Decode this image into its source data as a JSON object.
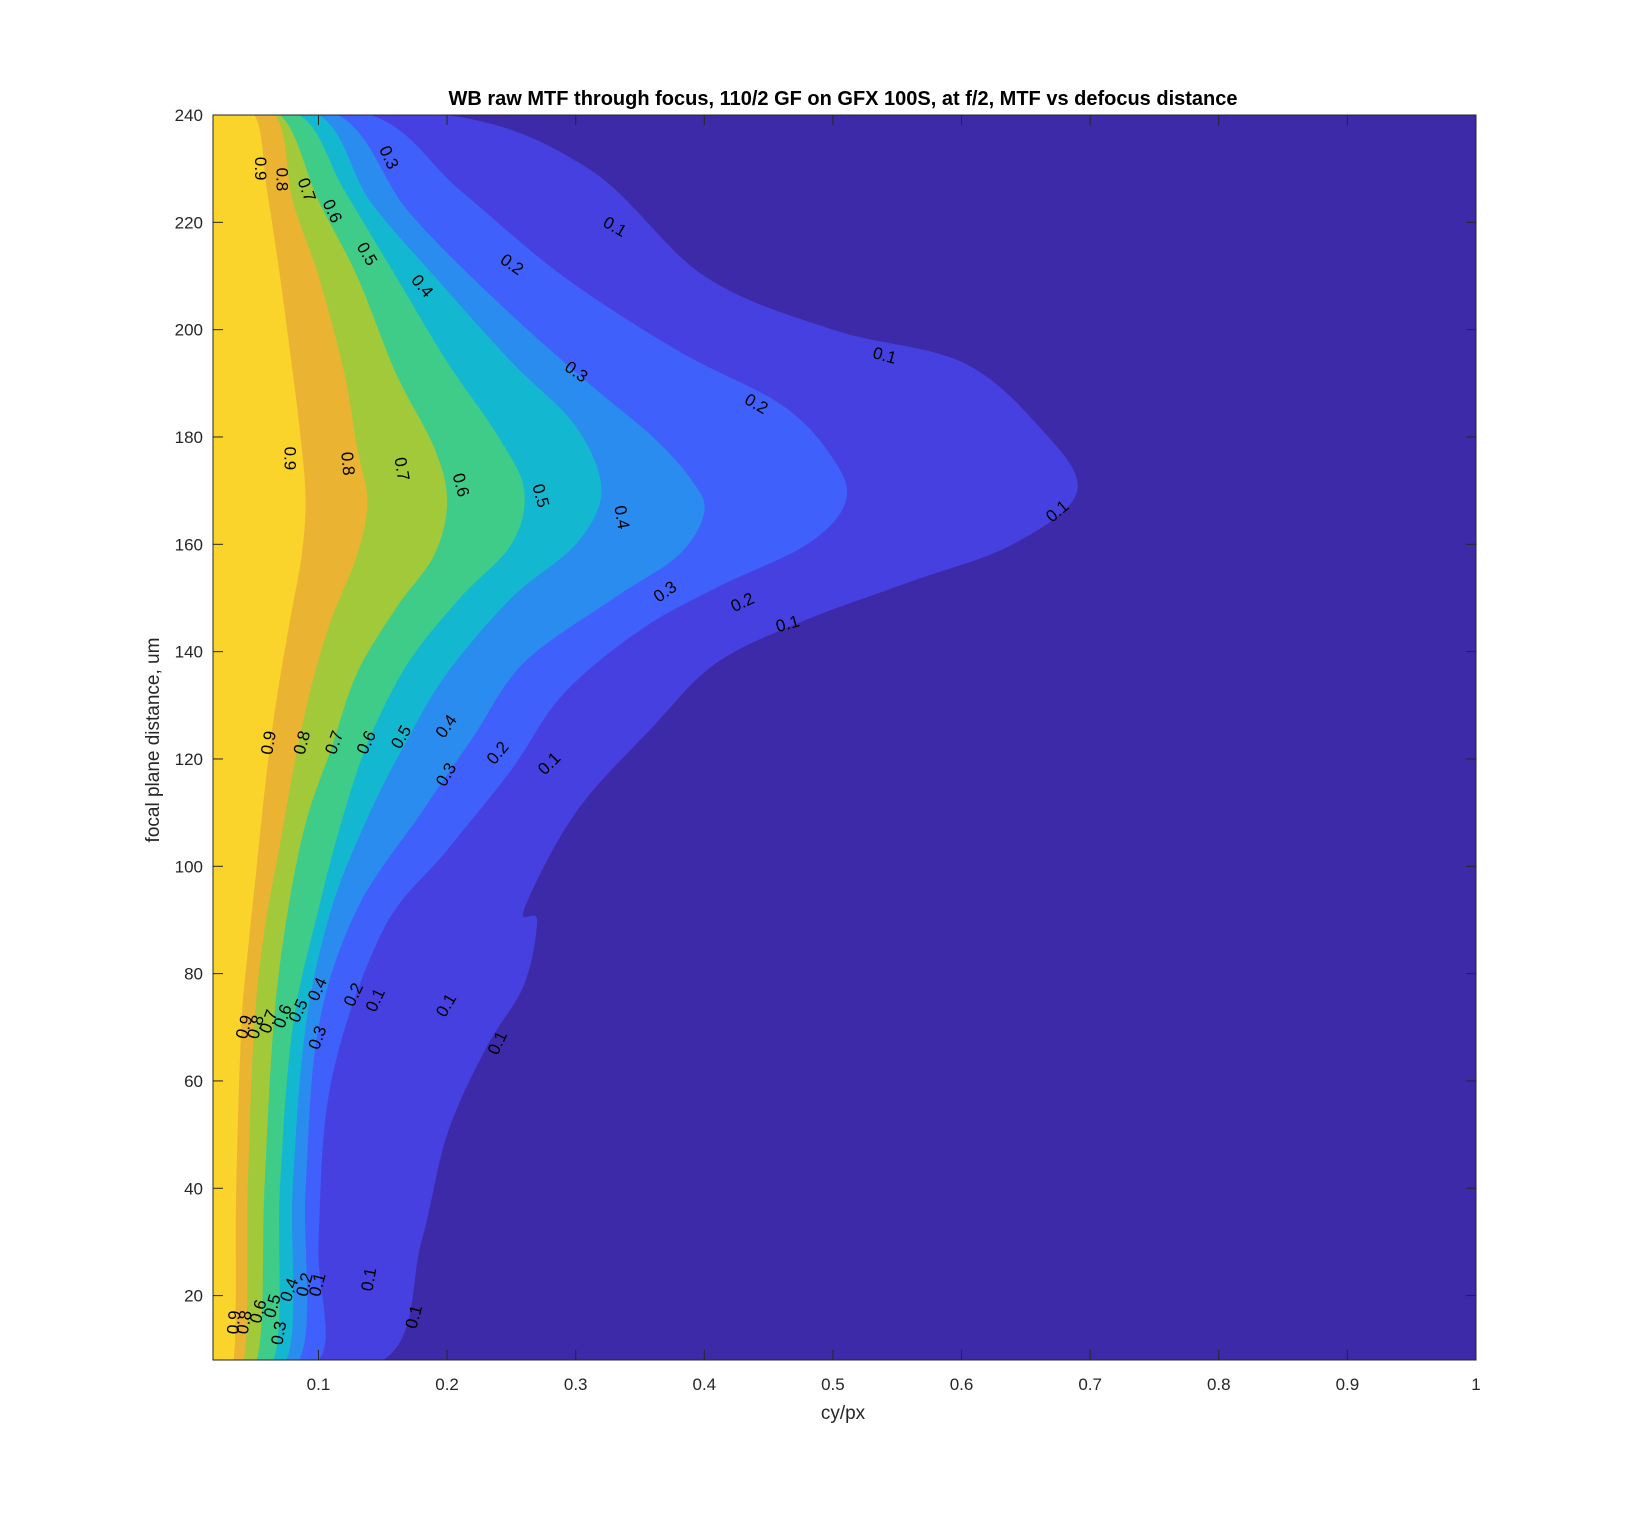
{
  "chart_data": {
    "type": "contour",
    "title": "WB raw MTF through focus, 110/2 GF on GFX 100S, at f/2, MTF vs defocus distance",
    "xlabel": "cy/px",
    "ylabel": "focal plane distance, um",
    "xlim": [
      0.018,
      1.0
    ],
    "ylim": [
      8,
      240
    ],
    "xticks": [
      0.1,
      0.2,
      0.3,
      0.4,
      0.5,
      0.6,
      0.7,
      0.8,
      0.9,
      1
    ],
    "xtick_labels": [
      "0.1",
      "0.2",
      "0.3",
      "0.4",
      "0.5",
      "0.6",
      "0.7",
      "0.8",
      "0.9",
      "1"
    ],
    "yticks": [
      20,
      40,
      60,
      80,
      100,
      120,
      140,
      160,
      180,
      200,
      220,
      240
    ],
    "ytick_labels": [
      "20",
      "40",
      "60",
      "80",
      "100",
      "120",
      "140",
      "160",
      "180",
      "200",
      "220",
      "240"
    ],
    "grid": false,
    "background_color": "#3c2aa8",
    "levels": [
      {
        "level": 0.1,
        "color": "#4740e0",
        "boundary": [
          [
            0.018,
            240
          ],
          [
            0.2,
            240
          ],
          [
            0.31,
            230
          ],
          [
            0.4,
            210
          ],
          [
            0.5,
            200
          ],
          [
            0.6,
            194
          ],
          [
            0.66,
            182
          ],
          [
            0.69,
            170
          ],
          [
            0.64,
            160
          ],
          [
            0.56,
            153
          ],
          [
            0.48,
            146
          ],
          [
            0.41,
            138
          ],
          [
            0.36,
            126
          ],
          [
            0.3,
            110
          ],
          [
            0.26,
            92
          ],
          [
            0.27,
            90
          ],
          [
            0.26,
            78
          ],
          [
            0.23,
            66
          ],
          [
            0.2,
            50
          ],
          [
            0.18,
            30
          ],
          [
            0.15,
            8
          ],
          [
            0.018,
            8
          ]
        ]
      },
      {
        "level": 0.2,
        "color": "#3f60fb",
        "boundary": [
          [
            0.018,
            240
          ],
          [
            0.14,
            240
          ],
          [
            0.21,
            226
          ],
          [
            0.29,
            210
          ],
          [
            0.38,
            196
          ],
          [
            0.46,
            186
          ],
          [
            0.5,
            176
          ],
          [
            0.51,
            168
          ],
          [
            0.48,
            160
          ],
          [
            0.41,
            152
          ],
          [
            0.35,
            144
          ],
          [
            0.29,
            132
          ],
          [
            0.25,
            118
          ],
          [
            0.2,
            103
          ],
          [
            0.15,
            88
          ],
          [
            0.11,
            60
          ],
          [
            0.1,
            30
          ],
          [
            0.1,
            8
          ],
          [
            0.018,
            8
          ]
        ]
      },
      {
        "level": 0.3,
        "color": "#2a8cee",
        "boundary": [
          [
            0.018,
            240
          ],
          [
            0.115,
            240
          ],
          [
            0.17,
            222
          ],
          [
            0.24,
            205
          ],
          [
            0.31,
            190
          ],
          [
            0.36,
            180
          ],
          [
            0.39,
            172
          ],
          [
            0.4,
            166
          ],
          [
            0.38,
            158
          ],
          [
            0.33,
            150
          ],
          [
            0.26,
            138
          ],
          [
            0.22,
            124
          ],
          [
            0.18,
            110
          ],
          [
            0.13,
            92
          ],
          [
            0.1,
            70
          ],
          [
            0.09,
            40
          ],
          [
            0.085,
            8
          ],
          [
            0.018,
            8
          ]
        ]
      },
      {
        "level": 0.4,
        "color": "#14b7d0",
        "boundary": [
          [
            0.018,
            240
          ],
          [
            0.1,
            240
          ],
          [
            0.14,
            224
          ],
          [
            0.19,
            210
          ],
          [
            0.25,
            194
          ],
          [
            0.3,
            182
          ],
          [
            0.32,
            170
          ],
          [
            0.3,
            160
          ],
          [
            0.25,
            150
          ],
          [
            0.2,
            136
          ],
          [
            0.17,
            124
          ],
          [
            0.14,
            110
          ],
          [
            0.11,
            92
          ],
          [
            0.09,
            70
          ],
          [
            0.08,
            40
          ],
          [
            0.075,
            8
          ],
          [
            0.018,
            8
          ]
        ]
      },
      {
        "level": 0.5,
        "color": "#3fcc88",
        "boundary": [
          [
            0.018,
            240
          ],
          [
            0.085,
            240
          ],
          [
            0.12,
            226
          ],
          [
            0.16,
            210
          ],
          [
            0.2,
            194
          ],
          [
            0.24,
            180
          ],
          [
            0.26,
            170
          ],
          [
            0.25,
            160
          ],
          [
            0.21,
            150
          ],
          [
            0.17,
            138
          ],
          [
            0.14,
            124
          ],
          [
            0.12,
            110
          ],
          [
            0.1,
            92
          ],
          [
            0.08,
            70
          ],
          [
            0.07,
            40
          ],
          [
            0.065,
            8
          ],
          [
            0.018,
            8
          ]
        ]
      },
      {
        "level": 0.6,
        "color": "#a2c93a",
        "boundary": [
          [
            0.018,
            240
          ],
          [
            0.07,
            240
          ],
          [
            0.1,
            224
          ],
          [
            0.13,
            210
          ],
          [
            0.16,
            192
          ],
          [
            0.19,
            178
          ],
          [
            0.2,
            168
          ],
          [
            0.19,
            158
          ],
          [
            0.16,
            148
          ],
          [
            0.13,
            136
          ],
          [
            0.11,
            122
          ],
          [
            0.09,
            108
          ],
          [
            0.075,
            90
          ],
          [
            0.065,
            70
          ],
          [
            0.058,
            40
          ],
          [
            0.052,
            8
          ],
          [
            0.018,
            8
          ]
        ]
      },
      {
        "level": 0.7,
        "color": "#eab432",
        "boundary": [
          [
            0.018,
            240
          ],
          [
            0.066,
            240
          ],
          [
            0.08,
            224
          ],
          [
            0.1,
            210
          ],
          [
            0.12,
            192
          ],
          [
            0.13,
            178
          ],
          [
            0.138,
            168
          ],
          [
            0.13,
            158
          ],
          [
            0.11,
            146
          ],
          [
            0.095,
            134
          ],
          [
            0.082,
            120
          ],
          [
            0.07,
            104
          ],
          [
            0.058,
            88
          ],
          [
            0.05,
            70
          ],
          [
            0.045,
            40
          ],
          [
            0.042,
            8
          ],
          [
            0.018,
            8
          ]
        ]
      },
      {
        "level": 0.8,
        "color": "#fad42a",
        "boundary": [
          [
            0.018,
            240
          ],
          [
            0.05,
            240
          ],
          [
            0.06,
            226
          ],
          [
            0.07,
            210
          ],
          [
            0.08,
            192
          ],
          [
            0.087,
            178
          ],
          [
            0.09,
            168
          ],
          [
            0.087,
            158
          ],
          [
            0.078,
            146
          ],
          [
            0.068,
            132
          ],
          [
            0.06,
            118
          ],
          [
            0.052,
            100
          ],
          [
            0.045,
            84
          ],
          [
            0.04,
            70
          ],
          [
            0.036,
            40
          ],
          [
            0.034,
            8
          ],
          [
            0.018,
            8
          ]
        ]
      }
    ],
    "contour_labels": [
      {
        "text": "0.9",
        "x": 0.054,
        "y": 230,
        "angle": 90
      },
      {
        "text": "0.8",
        "x": 0.071,
        "y": 228,
        "angle": 90
      },
      {
        "text": "0.7",
        "x": 0.09,
        "y": 226,
        "angle": 70
      },
      {
        "text": "0.6",
        "x": 0.11,
        "y": 222,
        "angle": 65
      },
      {
        "text": "0.5",
        "x": 0.137,
        "y": 214,
        "angle": 60
      },
      {
        "text": "0.4",
        "x": 0.18,
        "y": 208,
        "angle": 50
      },
      {
        "text": "0.3",
        "x": 0.154,
        "y": 232,
        "angle": 65
      },
      {
        "text": "0.2",
        "x": 0.25,
        "y": 212,
        "angle": 35
      },
      {
        "text": "0.1",
        "x": 0.33,
        "y": 219,
        "angle": 30
      },
      {
        "text": "0.1",
        "x": 0.54,
        "y": 195,
        "angle": 15
      },
      {
        "text": "0.3",
        "x": 0.3,
        "y": 192,
        "angle": 35
      },
      {
        "text": "0.2",
        "x": 0.44,
        "y": 186,
        "angle": 30
      },
      {
        "text": "0.9",
        "x": 0.077,
        "y": 176,
        "angle": 90
      },
      {
        "text": "0.8",
        "x": 0.122,
        "y": 175,
        "angle": 85
      },
      {
        "text": "0.7",
        "x": 0.164,
        "y": 174,
        "angle": 80
      },
      {
        "text": "0.6",
        "x": 0.21,
        "y": 171,
        "angle": 75
      },
      {
        "text": "0.5",
        "x": 0.272,
        "y": 169,
        "angle": 75
      },
      {
        "text": "0.4",
        "x": 0.335,
        "y": 165,
        "angle": 80
      },
      {
        "text": "0.1",
        "x": 0.675,
        "y": 166,
        "angle": -40
      },
      {
        "text": "0.3",
        "x": 0.37,
        "y": 151,
        "angle": -35
      },
      {
        "text": "0.2",
        "x": 0.43,
        "y": 149,
        "angle": -25
      },
      {
        "text": "0.1",
        "x": 0.465,
        "y": 145,
        "angle": -15
      },
      {
        "text": "0.9",
        "x": 0.062,
        "y": 123,
        "angle": -80
      },
      {
        "text": "0.8",
        "x": 0.088,
        "y": 123,
        "angle": -75
      },
      {
        "text": "0.7",
        "x": 0.113,
        "y": 123,
        "angle": -70
      },
      {
        "text": "0.6",
        "x": 0.138,
        "y": 123,
        "angle": -65
      },
      {
        "text": "0.5",
        "x": 0.165,
        "y": 124,
        "angle": -60
      },
      {
        "text": "0.4",
        "x": 0.2,
        "y": 126,
        "angle": -55
      },
      {
        "text": "0.3",
        "x": 0.2,
        "y": 117,
        "angle": -60
      },
      {
        "text": "0.2",
        "x": 0.24,
        "y": 121,
        "angle": -50
      },
      {
        "text": "0.1",
        "x": 0.28,
        "y": 119,
        "angle": -45
      },
      {
        "text": "0.9",
        "x": 0.043,
        "y": 70,
        "angle": -75
      },
      {
        "text": "0.8",
        "x": 0.052,
        "y": 70,
        "angle": -75
      },
      {
        "text": "0.7",
        "x": 0.062,
        "y": 71,
        "angle": -70
      },
      {
        "text": "0.6",
        "x": 0.073,
        "y": 72,
        "angle": -70
      },
      {
        "text": "0.5",
        "x": 0.085,
        "y": 73,
        "angle": -65
      },
      {
        "text": "0.4",
        "x": 0.1,
        "y": 77,
        "angle": -65
      },
      {
        "text": "0.3",
        "x": 0.1,
        "y": 68,
        "angle": -70
      },
      {
        "text": "0.2",
        "x": 0.128,
        "y": 76,
        "angle": -65
      },
      {
        "text": "0.1",
        "x": 0.145,
        "y": 75,
        "angle": -65
      },
      {
        "text": "0.1",
        "x": 0.2,
        "y": 74,
        "angle": -60
      },
      {
        "text": "0.1",
        "x": 0.24,
        "y": 67,
        "angle": -65
      },
      {
        "text": "0.9",
        "x": 0.035,
        "y": 15,
        "angle": -85
      },
      {
        "text": "0.8",
        "x": 0.043,
        "y": 15,
        "angle": -80
      },
      {
        "text": "0.6",
        "x": 0.054,
        "y": 17,
        "angle": -75
      },
      {
        "text": "0.5",
        "x": 0.065,
        "y": 18,
        "angle": -75
      },
      {
        "text": "0.4",
        "x": 0.078,
        "y": 21,
        "angle": -70
      },
      {
        "text": "0.3",
        "x": 0.07,
        "y": 13,
        "angle": -80
      },
      {
        "text": "0.2",
        "x": 0.09,
        "y": 22,
        "angle": -75
      },
      {
        "text": "0.1",
        "x": 0.1,
        "y": 22,
        "angle": -75
      },
      {
        "text": "0.1",
        "x": 0.14,
        "y": 23,
        "angle": -80
      },
      {
        "text": "0.1",
        "x": 0.175,
        "y": 16,
        "angle": -75
      }
    ]
  }
}
